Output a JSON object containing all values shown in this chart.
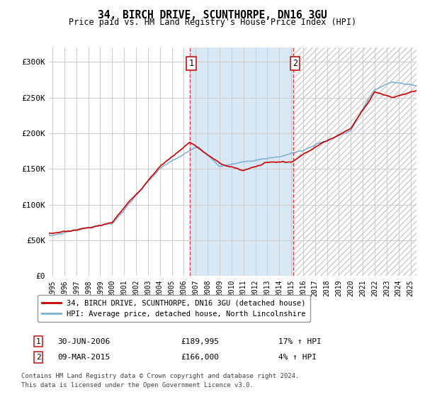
{
  "title": "34, BIRCH DRIVE, SCUNTHORPE, DN16 3GU",
  "subtitle": "Price paid vs. HM Land Registry's House Price Index (HPI)",
  "ylabel_ticks": [
    "£0",
    "£50K",
    "£100K",
    "£150K",
    "£200K",
    "£250K",
    "£300K"
  ],
  "ytick_values": [
    0,
    50000,
    100000,
    150000,
    200000,
    250000,
    300000
  ],
  "ylim": [
    0,
    320000
  ],
  "xlim_start": 1994.7,
  "xlim_end": 2025.5,
  "sale1_date": 2006.5,
  "sale1_label": "1",
  "sale1_price": 189995,
  "sale2_date": 2015.17,
  "sale2_label": "2",
  "sale2_price": 166000,
  "line_color_property": "#cc0000",
  "line_color_hpi": "#7bafd4",
  "shade_color": "#d8e8f5",
  "grid_color": "#cccccc",
  "legend_label_property": "34, BIRCH DRIVE, SCUNTHORPE, DN16 3GU (detached house)",
  "legend_label_hpi": "HPI: Average price, detached house, North Lincolnshire",
  "sale1_text": "30-JUN-2006",
  "sale1_price_text": "£189,995",
  "sale1_pct_text": "17% ↑ HPI",
  "sale2_text": "09-MAR-2015",
  "sale2_price_text": "£166,000",
  "sale2_pct_text": "4% ↑ HPI",
  "footer_line1": "Contains HM Land Registry data © Crown copyright and database right 2024.",
  "footer_line2": "This data is licensed under the Open Government Licence v3.0.",
  "xtick_years": [
    1995,
    1996,
    1997,
    1998,
    1999,
    2000,
    2001,
    2002,
    2003,
    2004,
    2005,
    2006,
    2007,
    2008,
    2009,
    2010,
    2011,
    2012,
    2013,
    2014,
    2015,
    2016,
    2017,
    2018,
    2019,
    2020,
    2021,
    2022,
    2023,
    2024,
    2025
  ]
}
